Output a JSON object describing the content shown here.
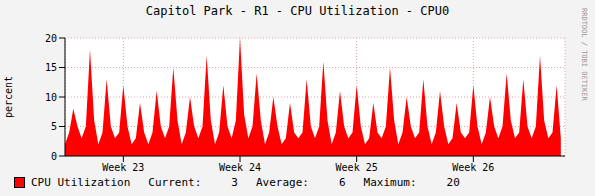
{
  "chart_data": {
    "type": "area",
    "title": "Capitol Park - R1 - CPU Utilization - CPU0",
    "y_label": "percent",
    "side_text": "RRDTOOL / TOBI OETIKER",
    "x": [
      0,
      0.25,
      0.5,
      0.75,
      1,
      1.25,
      1.5,
      1.75,
      2,
      2.25,
      2.5,
      2.75,
      3,
      3.25,
      3.5,
      3.75,
      4,
      4.25,
      4.5,
      4.75,
      5,
      5.25,
      5.5,
      5.75,
      6,
      6.25,
      6.5,
      6.75,
      7,
      7.25,
      7.5,
      7.75,
      8,
      8.25,
      8.5,
      8.75,
      9,
      9.25,
      9.5,
      9.75,
      10,
      10.25,
      10.5,
      10.75,
      11,
      11.25,
      11.5,
      11.75,
      12,
      12.25,
      12.5,
      12.75,
      13,
      13.25,
      13.5,
      13.75,
      14,
      14.25,
      14.5,
      14.75,
      15,
      15.25,
      15.5,
      15.75,
      16,
      16.25,
      16.5,
      16.75,
      17,
      17.25,
      17.5,
      17.75,
      18,
      18.25,
      18.5,
      18.75,
      19,
      19.25,
      19.5,
      19.75,
      20,
      20.25,
      20.5,
      20.75,
      21,
      21.25,
      21.5,
      21.75,
      22,
      22.25,
      22.5,
      22.75,
      23,
      23.25,
      23.5,
      23.75,
      24,
      24.25,
      24.5,
      24.75,
      25,
      25.25,
      25.5,
      25.75,
      26,
      26.25,
      26.5,
      26.75,
      27,
      27.25,
      27.5,
      27.75,
      28,
      28.25,
      28.5,
      28.75,
      29,
      29.25,
      29.5,
      29.75
    ],
    "series": [
      {
        "name": "CPU Utilization",
        "color": "#ff0000",
        "values": [
          2,
          4,
          8,
          5,
          3,
          5,
          18,
          6,
          2,
          4,
          13,
          5,
          3,
          4,
          12,
          5,
          2,
          3,
          9,
          4,
          2,
          4,
          11,
          5,
          3,
          5,
          15,
          6,
          2,
          4,
          10,
          5,
          3,
          5,
          17,
          6,
          2,
          4,
          12,
          5,
          3,
          6,
          20,
          7,
          3,
          5,
          14,
          6,
          2,
          4,
          10,
          5,
          2,
          3,
          9,
          4,
          3,
          4,
          13,
          5,
          3,
          5,
          16,
          6,
          2,
          4,
          11,
          5,
          3,
          4,
          12,
          5,
          2,
          3,
          9,
          4,
          3,
          5,
          15,
          6,
          2,
          4,
          10,
          5,
          3,
          4,
          13,
          5,
          2,
          4,
          11,
          5,
          2,
          3,
          9,
          4,
          3,
          4,
          12,
          5,
          2,
          4,
          10,
          5,
          3,
          5,
          14,
          6,
          3,
          4,
          13,
          5,
          3,
          5,
          17,
          6,
          3,
          4,
          12,
          3
        ]
      }
    ],
    "xlim": [
      0,
      30
    ],
    "xticks": [
      {
        "value": 3.5,
        "label": "Week 23"
      },
      {
        "value": 10.5,
        "label": "Week 24"
      },
      {
        "value": 17.5,
        "label": "Week 25"
      },
      {
        "value": 24.5,
        "label": "Week 26"
      }
    ],
    "ylim": [
      0,
      20
    ],
    "yticks": [
      0,
      5,
      10,
      15,
      20
    ],
    "grid": true,
    "legend_stats": [
      {
        "label": "Current:",
        "value": 3
      },
      {
        "label": "Average:",
        "value": 6
      },
      {
        "label": "Maximum:",
        "value": 20
      }
    ]
  }
}
